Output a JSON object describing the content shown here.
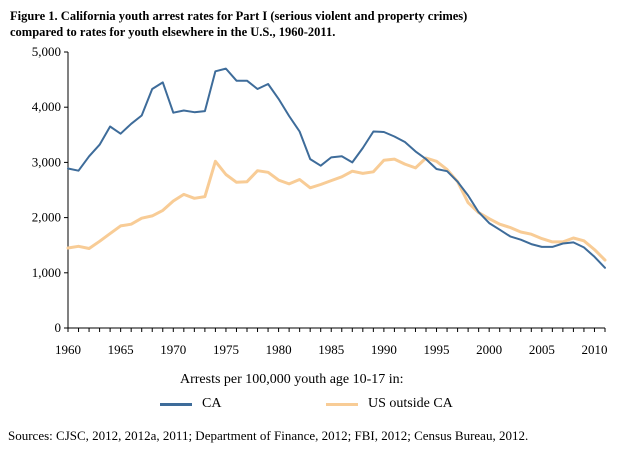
{
  "title": {
    "line1": "Figure 1.  California youth arrest rates for Part I (serious violent and property crimes)",
    "line2": "compared to rates for youth elsewhere in the U.S., 1960-2011."
  },
  "caption": "Arrests per 100,000 youth age 10-17 in:",
  "source": "Sources: CJSC, 2012, 2012a, 2011; Department of Finance, 2012; FBI, 2012; Census Bureau, 2012.",
  "colors": {
    "ca": "#3e6c9a",
    "us": "#f8cc96",
    "axis": "#000000"
  },
  "chart_data": {
    "type": "line",
    "title": "",
    "xlabel": "",
    "ylabel": "",
    "xlim": [
      1960,
      2011
    ],
    "ylim": [
      0,
      5000
    ],
    "grid": false,
    "legend_position": "bottom",
    "x_ticks": [
      1960,
      1965,
      1970,
      1975,
      1980,
      1985,
      1990,
      1995,
      2000,
      2005,
      2010
    ],
    "x_tick_labels": [
      "1960",
      "1965",
      "1970",
      "1975",
      "1980",
      "1985",
      "1990",
      "1995",
      "2000",
      "2005",
      "2010"
    ],
    "y_ticks": [
      0,
      1000,
      2000,
      3000,
      4000,
      5000
    ],
    "y_tick_labels": [
      "0",
      "1,000",
      "2,000",
      "3,000",
      "4,000",
      "5,000"
    ],
    "x": [
      1960,
      1961,
      1962,
      1963,
      1964,
      1965,
      1966,
      1967,
      1968,
      1969,
      1970,
      1971,
      1972,
      1973,
      1974,
      1975,
      1976,
      1977,
      1978,
      1979,
      1980,
      1981,
      1982,
      1983,
      1984,
      1985,
      1986,
      1987,
      1988,
      1989,
      1990,
      1991,
      1992,
      1993,
      1994,
      1995,
      1996,
      1997,
      1998,
      1999,
      2000,
      2001,
      2002,
      2003,
      2004,
      2005,
      2006,
      2007,
      2008,
      2009,
      2010,
      2011
    ],
    "series": [
      {
        "name": "CA",
        "color": "#3e6c9a",
        "values": [
          2890,
          2850,
          3110,
          3320,
          3650,
          3520,
          3700,
          3850,
          4330,
          4450,
          3900,
          3940,
          3910,
          3930,
          4650,
          4700,
          4480,
          4480,
          4330,
          4420,
          4150,
          3840,
          3560,
          3060,
          2940,
          3090,
          3110,
          3000,
          3260,
          3560,
          3550,
          3470,
          3370,
          3200,
          3060,
          2880,
          2840,
          2650,
          2400,
          2100,
          1900,
          1780,
          1660,
          1600,
          1520,
          1470,
          1470,
          1530,
          1550,
          1460,
          1290,
          1090
        ]
      },
      {
        "name": "US outside CA",
        "color": "#f8cc96",
        "values": [
          1450,
          1480,
          1440,
          1570,
          1710,
          1850,
          1880,
          1990,
          2030,
          2130,
          2300,
          2420,
          2350,
          2380,
          3020,
          2780,
          2640,
          2650,
          2850,
          2820,
          2680,
          2610,
          2690,
          2540,
          2600,
          2670,
          2740,
          2840,
          2800,
          2830,
          3040,
          3060,
          2970,
          2900,
          3080,
          3020,
          2870,
          2650,
          2270,
          2090,
          1980,
          1880,
          1820,
          1740,
          1700,
          1620,
          1560,
          1560,
          1630,
          1580,
          1420,
          1230
        ]
      }
    ]
  }
}
